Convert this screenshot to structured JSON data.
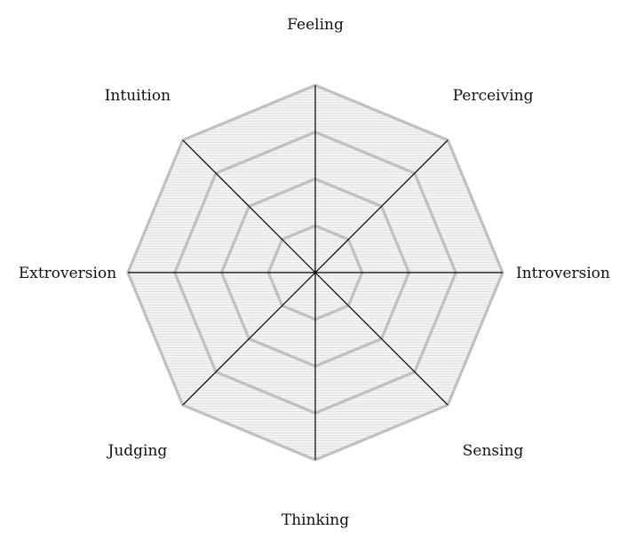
{
  "axes": [
    {
      "id": "introversion",
      "label": "Introversion"
    },
    {
      "id": "perceiving",
      "label": "Perceiving"
    },
    {
      "id": "feeling",
      "label": "Feeling"
    },
    {
      "id": "intuition",
      "label": "Intuition"
    },
    {
      "id": "extroversion",
      "label": "Extroversion"
    },
    {
      "id": "judging",
      "label": "Judging"
    },
    {
      "id": "thinking",
      "label": "Thinking"
    },
    {
      "id": "sensing",
      "label": "Sensing"
    }
  ],
  "levels": 4,
  "colors": {
    "grid_ring": "#c0c0c0",
    "grid_fill": "#f1f1f1",
    "hatch": "#dcdcdc",
    "spoke": "#000000",
    "label": "#111111"
  }
}
